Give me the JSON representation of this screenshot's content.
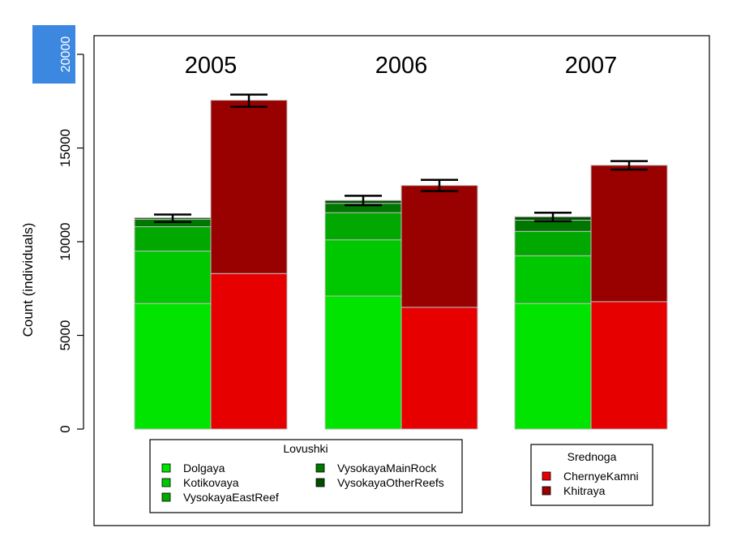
{
  "chart_data": {
    "type": "bar",
    "stacked": true,
    "ylabel": "Count (individuals)",
    "ylim": [
      0,
      21000
    ],
    "yticks": [
      0,
      5000,
      10000,
      15000,
      20000
    ],
    "highlighted_tick": "20000",
    "highlight_color": "#3c87e0",
    "groups": [
      "2005",
      "2006",
      "2007"
    ],
    "stacks": [
      {
        "name": "Lovushki",
        "series": [
          {
            "name": "Dolgaya",
            "color": "#00e400",
            "values": [
              6700,
              7100,
              6700
            ]
          },
          {
            "name": "Kotikovaya",
            "color": "#00c800",
            "values": [
              2800,
              3000,
              2550
            ]
          },
          {
            "name": "VysokayaEastReef",
            "color": "#00a800",
            "values": [
              1300,
              1450,
              1300
            ]
          },
          {
            "name": "VysokayaMainRock",
            "color": "#007700",
            "values": [
              400,
              500,
              600
            ]
          },
          {
            "name": "VysokayaOtherReefs",
            "color": "#004d00",
            "values": [
              80,
              150,
              180
            ]
          }
        ],
        "error_bars": [
          {
            "low": 11050,
            "high": 11450
          },
          {
            "low": 11950,
            "high": 12450
          },
          {
            "low": 11100,
            "high": 11550
          }
        ]
      },
      {
        "name": "Srednoga",
        "series": [
          {
            "name": "ChernyeKamni",
            "color": "#e60000",
            "values": [
              8300,
              6500,
              6800
            ]
          },
          {
            "name": "Khitraya",
            "color": "#990000",
            "values": [
              9250,
              6500,
              7280
            ]
          }
        ],
        "error_bars": [
          {
            "low": 17200,
            "high": 17850
          },
          {
            "low": 12700,
            "high": 13300
          },
          {
            "low": 13850,
            "high": 14300
          }
        ]
      }
    ],
    "legends": [
      {
        "title": "Lovushki",
        "entries": [
          "Dolgaya",
          "Kotikovaya",
          "VysokayaEastReef",
          "VysokayaMainRock",
          "VysokayaOtherReefs"
        ]
      },
      {
        "title": "Srednoga",
        "entries": [
          "ChernyeKamni",
          "Khitraya"
        ]
      }
    ]
  }
}
